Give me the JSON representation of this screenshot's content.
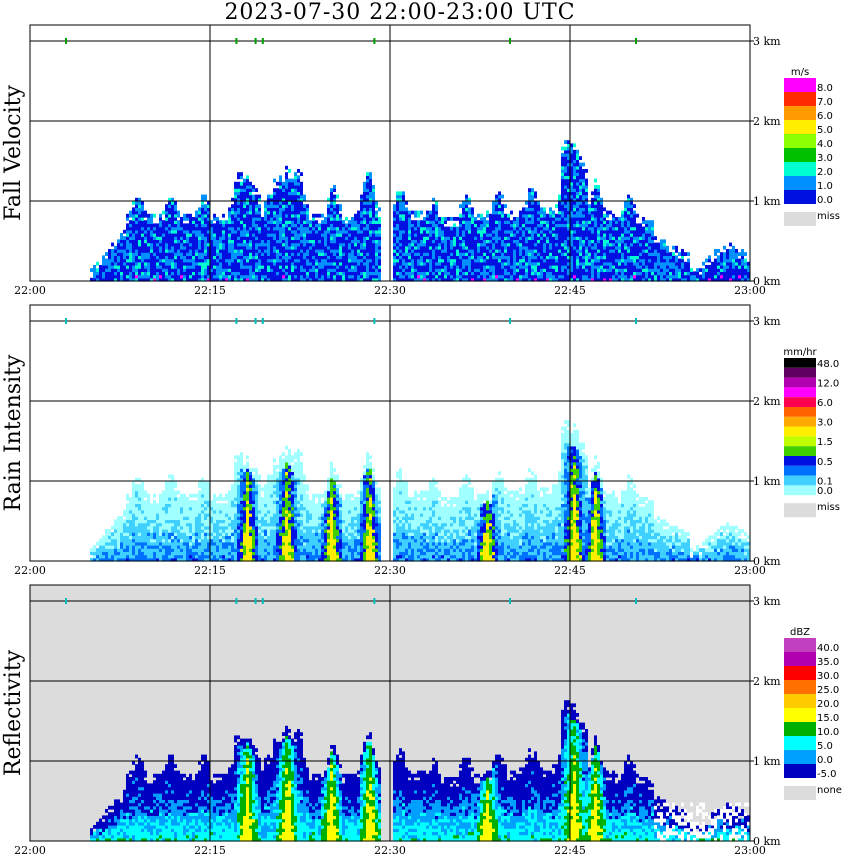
{
  "title": "2023-07-30   22:00-23:00 UTC",
  "chart_data": {
    "type": "heatmap",
    "x_ticks": [
      "22:00",
      "22:15",
      "22:30",
      "22:45",
      "23:00"
    ],
    "x_range": [
      0,
      60
    ],
    "y_ticks": [
      "0 km",
      "1 km",
      "2 km",
      "3 km"
    ],
    "y_range": [
      0,
      3.2
    ],
    "panels": [
      {
        "id": "fall",
        "ylabel": "Fall Velocity",
        "unit": "m/s",
        "background": "#ffffff",
        "legend": [
          {
            "label": "8.0",
            "color": "#ff00ff"
          },
          {
            "label": "7.0",
            "color": "#ff2a00"
          },
          {
            "label": "6.0",
            "color": "#ff9900"
          },
          {
            "label": "5.0",
            "color": "#ffee00"
          },
          {
            "label": "4.0",
            "color": "#8cff00"
          },
          {
            "label": "3.0",
            "color": "#00c000"
          },
          {
            "label": "2.0",
            "color": "#00ffd0"
          },
          {
            "label": "1.0",
            "color": "#0090ff"
          },
          {
            "label": "0.0",
            "color": "#0010e0"
          }
        ],
        "miss_label": "miss"
      },
      {
        "id": "rain",
        "ylabel": "Rain Intensity",
        "unit": "mm/hr",
        "background": "#ffffff",
        "legend": [
          {
            "label": "48.0",
            "color": "#000000"
          },
          {
            "label": "",
            "color": "#600060"
          },
          {
            "label": "12.0",
            "color": "#b000b0"
          },
          {
            "label": "",
            "color": "#ff00ff"
          },
          {
            "label": "6.0",
            "color": "#ff0050"
          },
          {
            "label": "",
            "color": "#ff6000"
          },
          {
            "label": "3.0",
            "color": "#ffaa00"
          },
          {
            "label": "",
            "color": "#ffee00"
          },
          {
            "label": "1.5",
            "color": "#c0ff00"
          },
          {
            "label": "",
            "color": "#40d000"
          },
          {
            "label": "0.5",
            "color": "#0010e0"
          },
          {
            "label": "",
            "color": "#0070ff"
          },
          {
            "label": "0.1",
            "color": "#40d0ff"
          },
          {
            "label": "0.0",
            "color": "#a0ffff"
          }
        ],
        "miss_label": "miss"
      },
      {
        "id": "refl",
        "ylabel": "Reflectivity",
        "unit": "dBZ",
        "background": "#dcdcdc",
        "legend": [
          {
            "label": "40.0",
            "color": "#c040c0"
          },
          {
            "label": "35.0",
            "color": "#b000b0"
          },
          {
            "label": "30.0",
            "color": "#ff0000"
          },
          {
            "label": "25.0",
            "color": "#ff7000"
          },
          {
            "label": "20.0",
            "color": "#ffcc00"
          },
          {
            "label": "15.0",
            "color": "#ffff00"
          },
          {
            "label": "10.0",
            "color": "#00b000"
          },
          {
            "label": "5.0",
            "color": "#00ffff"
          },
          {
            "label": "0.0",
            "color": "#00a0ff"
          },
          {
            "label": "-5.0",
            "color": "#0000c0"
          }
        ],
        "miss_label": "none"
      }
    ]
  }
}
